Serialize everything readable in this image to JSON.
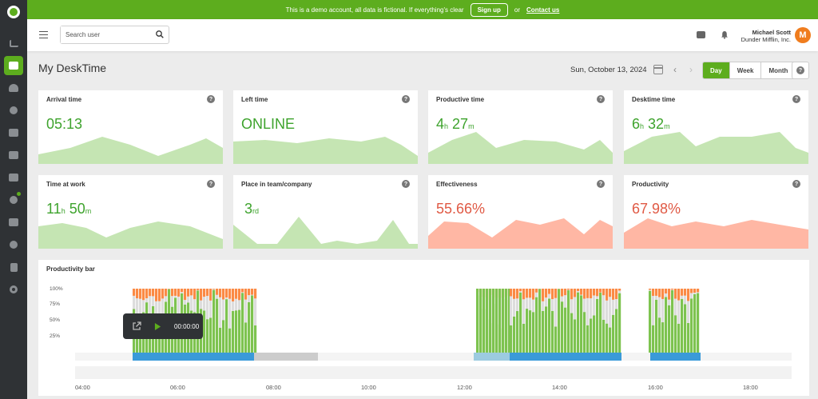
{
  "banner": {
    "message": "This is a demo account, all data is fictional. If everything's clear",
    "signup_label": "Sign up",
    "or_text": "or",
    "contact_label": "Contact us"
  },
  "header": {
    "search_placeholder": "Search user",
    "user_name": "Michael Scott",
    "company": "Dunder Mifflin, Inc.",
    "avatar_letter": "M"
  },
  "page": {
    "title": "My DeskTime",
    "date": "Sun, October 13, 2024",
    "periods": [
      "Day",
      "Week",
      "Month"
    ],
    "active_period": "Day"
  },
  "colors": {
    "accent": "#5dad1e",
    "green_area": "#c5e5b3",
    "red_area": "#ffb7a4",
    "productive": "#7dc34f",
    "unproductive": "#fb8a45",
    "neutral": "#dddddd",
    "timeline_blue": "#3a9ad9"
  },
  "cards": [
    {
      "title": "Arrival time",
      "value": "05:13",
      "tone": "green"
    },
    {
      "title": "Left time",
      "value": "ONLINE",
      "tone": "green"
    },
    {
      "title": "Productive time",
      "value_h": "4",
      "unit_h": "h",
      "value_m": "27",
      "unit_m": "m",
      "tone": "green"
    },
    {
      "title": "Desktime time",
      "value_h": "6",
      "unit_h": "h",
      "value_m": "32",
      "unit_m": "m",
      "tone": "green"
    },
    {
      "title": "Time at work",
      "value_h": "11",
      "unit_h": "h",
      "value_m": "50",
      "unit_m": "m",
      "tone": "green"
    },
    {
      "title": "Place in team/company",
      "value_n": "3",
      "unit_n": "rd",
      "tone": "green"
    },
    {
      "title": "Effectiveness",
      "value": "55.66%",
      "tone": "red"
    },
    {
      "title": "Productivity",
      "value": "67.98%",
      "tone": "red"
    }
  ],
  "productivity_bar": {
    "title": "Productivity bar",
    "y_labels": [
      "100%",
      "75%",
      "50%",
      "25%"
    ],
    "x_labels": [
      "04:00",
      "06:00",
      "08:00",
      "10:00",
      "12:00",
      "14:00",
      "16:00",
      "18:00"
    ],
    "tooltip_time": "00:00:00"
  }
}
